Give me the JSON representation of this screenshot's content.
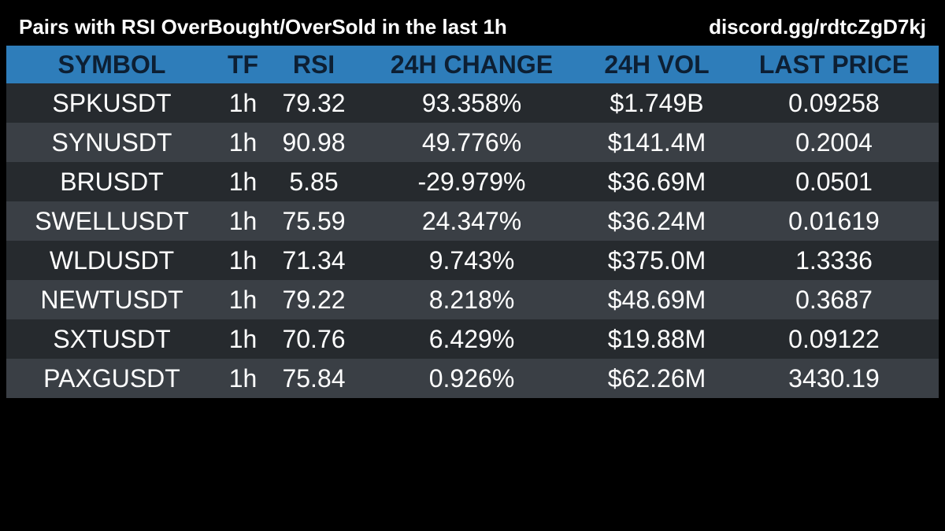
{
  "header": {
    "title": "Pairs with RSI OverBought/OverSold in the last 1h",
    "link": "discord.gg/rdtcZgD7kj"
  },
  "colors": {
    "background": "#000000",
    "header_row": "#2e7dba",
    "row_dark": "#262a2e",
    "row_light": "#3a3f45",
    "header_text": "#0d1f33"
  },
  "table": {
    "columns": [
      "SYMBOL",
      "TF",
      "RSI",
      "24H CHANGE",
      "24H VOL",
      "LAST PRICE"
    ],
    "rows": [
      [
        "SPKUSDT",
        "1h",
        "79.32",
        "93.358%",
        "$1.749B",
        "0.09258"
      ],
      [
        "SYNUSDT",
        "1h",
        "90.98",
        "49.776%",
        "$141.4M",
        "0.2004"
      ],
      [
        "BRUSDT",
        "1h",
        "5.85",
        "-29.979%",
        "$36.69M",
        "0.0501"
      ],
      [
        "SWELLUSDT",
        "1h",
        "75.59",
        "24.347%",
        "$36.24M",
        "0.01619"
      ],
      [
        "WLDUSDT",
        "1h",
        "71.34",
        "9.743%",
        "$375.0M",
        "1.3336"
      ],
      [
        "NEWTUSDT",
        "1h",
        "79.22",
        "8.218%",
        "$48.69M",
        "0.3687"
      ],
      [
        "SXTUSDT",
        "1h",
        "70.76",
        "6.429%",
        "$19.88M",
        "0.09122"
      ],
      [
        "PAXGUSDT",
        "1h",
        "75.84",
        "0.926%",
        "$62.26M",
        "3430.19"
      ]
    ]
  }
}
